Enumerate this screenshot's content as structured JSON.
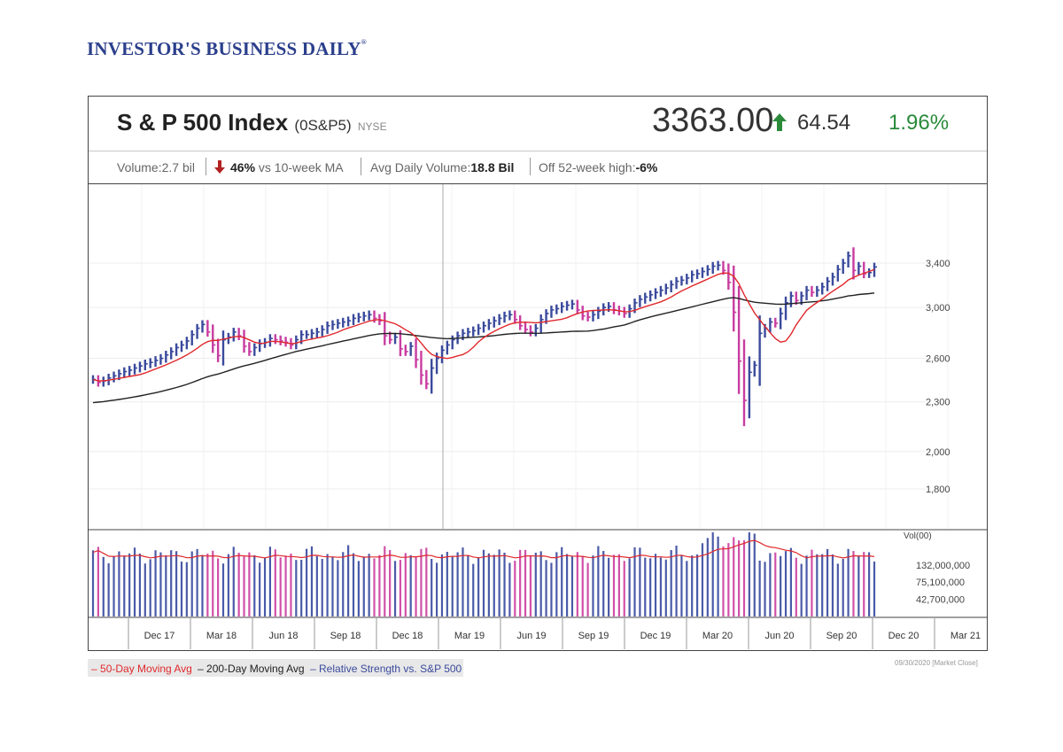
{
  "brand": {
    "logo_text": "INVESTOR'S BUSINESS DAILY",
    "logo_mark": "®"
  },
  "header": {
    "name": "S & P 500 Index",
    "symbol": "(0S&P5)",
    "exchange": "NYSE",
    "price": "3363.00",
    "change": "64.54",
    "change_pct": "1.96%"
  },
  "stats": {
    "volume_label": "Volume:",
    "volume_value": "2.7 bil",
    "vs_ma_value": "46%",
    "vs_ma_label": "vs 10-week MA",
    "avg_label": "Avg Daily Volume:",
    "avg_value": "18.8 Bil",
    "off_high_label": "Off 52-week high:",
    "off_high_value": "-6%"
  },
  "legend": {
    "ma50": "50-Day Moving Avg",
    "ma200": "200-Day Moving Avg",
    "rs": "Relative Strength vs. S&P 500"
  },
  "footer": {
    "timestamp": "09/30/2020 [Market Close]"
  },
  "colors": {
    "up_bar": "#3a4a9c",
    "down_bar": "#c83ca0",
    "ma50": "#e0282c",
    "ma200": "#222222",
    "vol_up": "#4a5aa8",
    "vol_down": "#d050a8",
    "vol_ma": "#e0282c",
    "positive": "#2a8a3a",
    "negative": "#b22222"
  },
  "chart_data": {
    "type": "ohlc",
    "scale": "log",
    "price_axis_ticks": [
      3400,
      3000,
      2600,
      2300,
      2000,
      1800
    ],
    "price_axis_labels": [
      "3,400",
      "3,000",
      "2,600",
      "2,300",
      "2,000",
      "1,800"
    ],
    "volume_axis_title": "Vol(00)",
    "volume_axis_ticks": [
      132000000,
      75100000,
      42700000
    ],
    "volume_axis_labels": [
      "132,000,000",
      "75,100,000",
      "42,700,000"
    ],
    "x_labels": [
      "Dec 17",
      "Mar 18",
      "Jun 18",
      "Sep 18",
      "Dec 18",
      "Mar 19",
      "Jun 19",
      "Sep 19",
      "Dec 19",
      "Mar 20",
      "Jun 20",
      "Sep 20",
      "Dec 20",
      "Mar 21"
    ],
    "highlight_label": "Dec 18",
    "weekly_close": [
      2450,
      2430,
      2440,
      2460,
      2475,
      2490,
      2505,
      2515,
      2530,
      2545,
      2560,
      2570,
      2585,
      2600,
      2625,
      2650,
      2680,
      2700,
      2730,
      2780,
      2830,
      2860,
      2800,
      2700,
      2620,
      2740,
      2760,
      2800,
      2770,
      2690,
      2650,
      2680,
      2710,
      2720,
      2750,
      2740,
      2730,
      2720,
      2700,
      2740,
      2780,
      2780,
      2790,
      2800,
      2820,
      2850,
      2860,
      2870,
      2880,
      2890,
      2910,
      2920,
      2930,
      2940,
      2910,
      2890,
      2770,
      2740,
      2760,
      2670,
      2650,
      2690,
      2590,
      2480,
      2420,
      2530,
      2600,
      2660,
      2700,
      2740,
      2770,
      2790,
      2800,
      2810,
      2830,
      2850,
      2870,
      2890,
      2910,
      2930,
      2940,
      2900,
      2850,
      2820,
      2800,
      2830,
      2900,
      2950,
      2980,
      2990,
      3010,
      3020,
      3030,
      2980,
      2930,
      2920,
      2940,
      2970,
      3000,
      3010,
      2980,
      2970,
      2950,
      2990,
      3040,
      3070,
      3090,
      3110,
      3130,
      3150,
      3170,
      3200,
      3230,
      3240,
      3260,
      3290,
      3300,
      3320,
      3340,
      3370,
      3380,
      3330,
      3220,
      2960,
      2580,
      2310,
      2500,
      2550,
      2790,
      2830,
      2880,
      2870,
      2950,
      3040,
      3100,
      3060,
      3100,
      3150,
      3130,
      3150,
      3180,
      3230,
      3270,
      3340,
      3400,
      3470,
      3330,
      3370,
      3300,
      3310,
      3363
    ]
  }
}
